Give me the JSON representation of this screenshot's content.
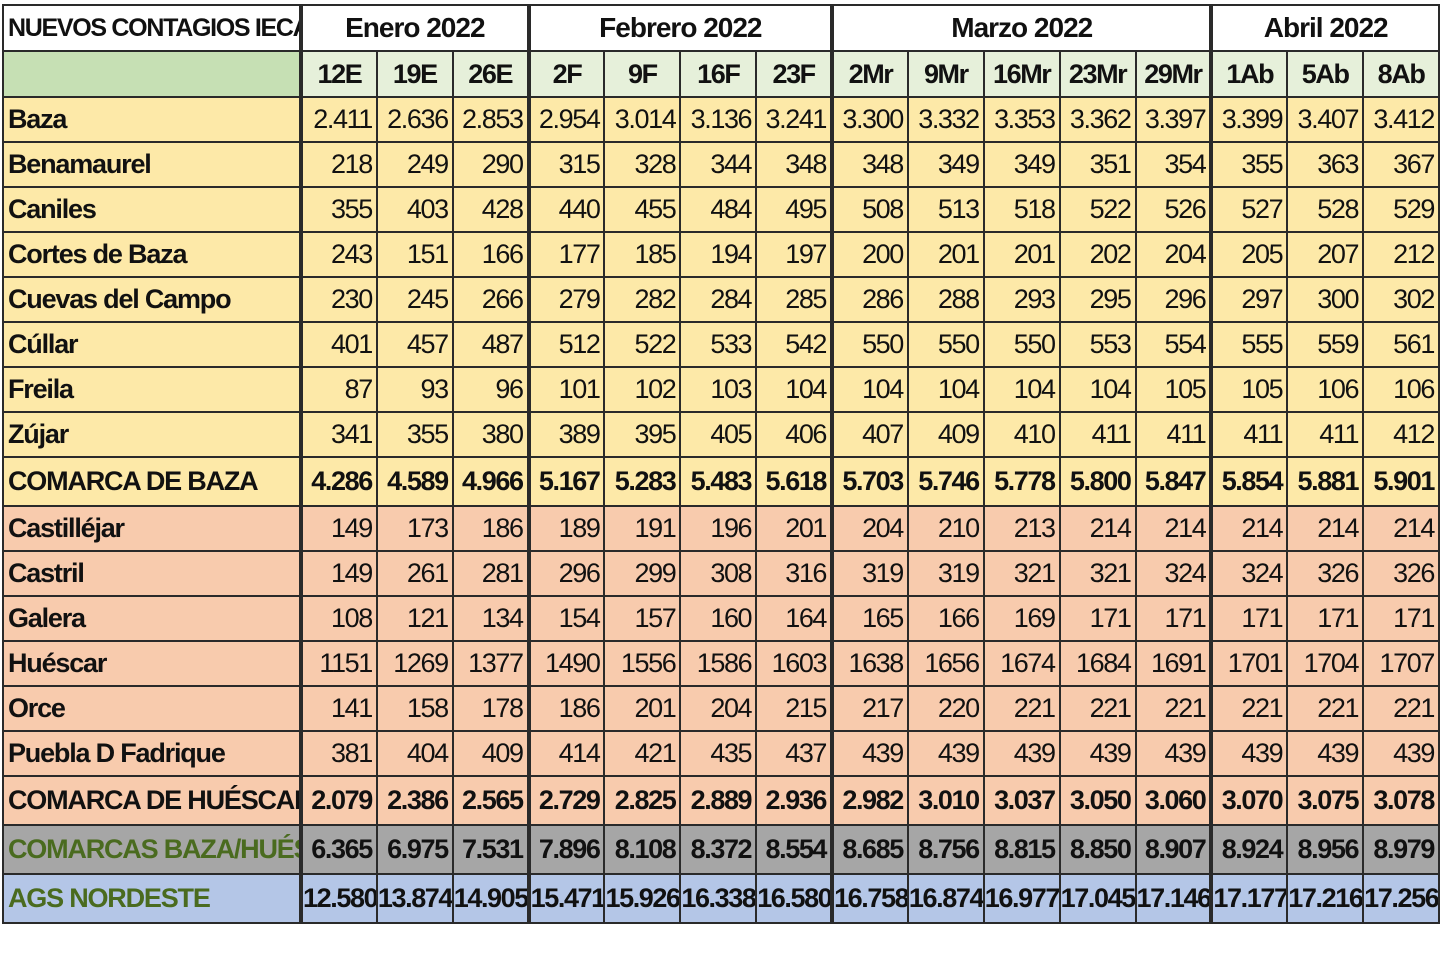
{
  "table": {
    "title": "NUEVOS CONTAGIOS IECA",
    "months": [
      {
        "label": "Enero 2022",
        "span": 3
      },
      {
        "label": "Febrero 2022",
        "span": 4
      },
      {
        "label": "Marzo 2022",
        "span": 5
      },
      {
        "label": "Abril 2022",
        "span": 3
      }
    ],
    "dates": [
      "12E",
      "19E",
      "26E",
      "2F",
      "9F",
      "16F",
      "23F",
      "2Mr",
      "9Mr",
      "16Mr",
      "23Mr",
      "29Mr",
      "1Ab",
      "5Ab",
      "8Ab"
    ],
    "rows": [
      {
        "name": "Baza",
        "values": [
          "2.411",
          "2.636",
          "2.853",
          "2.954",
          "3.014",
          "3.136",
          "3.241",
          "3.300",
          "3.332",
          "3.353",
          "3.362",
          "3.397",
          "3.399",
          "3.407",
          "3.412"
        ]
      },
      {
        "name": "Benamaurel",
        "values": [
          "218",
          "249",
          "290",
          "315",
          "328",
          "344",
          "348",
          "348",
          "349",
          "349",
          "351",
          "354",
          "355",
          "363",
          "367"
        ]
      },
      {
        "name": "Caniles",
        "values": [
          "355",
          "403",
          "428",
          "440",
          "455",
          "484",
          "495",
          "508",
          "513",
          "518",
          "522",
          "526",
          "527",
          "528",
          "529"
        ]
      },
      {
        "name": "Cortes de Baza",
        "values": [
          "243",
          "151",
          "166",
          "177",
          "185",
          "194",
          "197",
          "200",
          "201",
          "201",
          "202",
          "204",
          "205",
          "207",
          "212"
        ]
      },
      {
        "name": "Cuevas del Campo",
        "values": [
          "230",
          "245",
          "266",
          "279",
          "282",
          "284",
          "285",
          "286",
          "288",
          "293",
          "295",
          "296",
          "297",
          "300",
          "302"
        ]
      },
      {
        "name": "Cúllar",
        "values": [
          "401",
          "457",
          "487",
          "512",
          "522",
          "533",
          "542",
          "550",
          "550",
          "550",
          "553",
          "554",
          "555",
          "559",
          "561"
        ]
      },
      {
        "name": "Freila",
        "values": [
          "87",
          "93",
          "96",
          "101",
          "102",
          "103",
          "104",
          "104",
          "104",
          "104",
          "104",
          "105",
          "105",
          "106",
          "106"
        ]
      },
      {
        "name": "Zújar",
        "values": [
          "341",
          "355",
          "380",
          "389",
          "395",
          "405",
          "406",
          "407",
          "409",
          "410",
          "411",
          "411",
          "411",
          "411",
          "412"
        ]
      },
      {
        "name": "COMARCA DE BAZA",
        "values": [
          "4.286",
          "4.589",
          "4.966",
          "5.167",
          "5.283",
          "5.483",
          "5.618",
          "5.703",
          "5.746",
          "5.778",
          "5.800",
          "5.847",
          "5.854",
          "5.881",
          "5.901"
        ]
      },
      {
        "name": "Castilléjar",
        "values": [
          "149",
          "173",
          "186",
          "189",
          "191",
          "196",
          "201",
          "204",
          "210",
          "213",
          "214",
          "214",
          "214",
          "214",
          "214"
        ]
      },
      {
        "name": "Castril",
        "values": [
          "149",
          "261",
          "281",
          "296",
          "299",
          "308",
          "316",
          "319",
          "319",
          "321",
          "321",
          "324",
          "324",
          "326",
          "326"
        ]
      },
      {
        "name": "Galera",
        "values": [
          "108",
          "121",
          "134",
          "154",
          "157",
          "160",
          "164",
          "165",
          "166",
          "169",
          "171",
          "171",
          "171",
          "171",
          "171"
        ]
      },
      {
        "name": "Huéscar",
        "values": [
          "1151",
          "1269",
          "1377",
          "1490",
          "1556",
          "1586",
          "1603",
          "1638",
          "1656",
          "1674",
          "1684",
          "1691",
          "1701",
          "1704",
          "1707"
        ]
      },
      {
        "name": "Orce",
        "values": [
          "141",
          "158",
          "178",
          "186",
          "201",
          "204",
          "215",
          "217",
          "220",
          "221",
          "221",
          "221",
          "221",
          "221",
          "221"
        ]
      },
      {
        "name": "Puebla D Fadrique",
        "values": [
          "381",
          "404",
          "409",
          "414",
          "421",
          "435",
          "437",
          "439",
          "439",
          "439",
          "439",
          "439",
          "439",
          "439",
          "439"
        ]
      },
      {
        "name": "COMARCA DE HUÉSCAR",
        "values": [
          "2.079",
          "2.386",
          "2.565",
          "2.729",
          "2.825",
          "2.889",
          "2.936",
          "2.982",
          "3.010",
          "3.037",
          "3.050",
          "3.060",
          "3.070",
          "3.075",
          "3.078"
        ]
      },
      {
        "name": "COMARCAS BAZA/HUÉSCAR",
        "values": [
          "6.365",
          "6.975",
          "7.531",
          "7.896",
          "8.108",
          "8.372",
          "8.554",
          "8.685",
          "8.756",
          "8.815",
          "8.850",
          "8.907",
          "8.924",
          "8.956",
          "8.979"
        ]
      },
      {
        "name": "AGS NORDESTE",
        "values": [
          "12.580",
          "13.874",
          "14.905",
          "15.471",
          "15.926",
          "16.338",
          "16.580",
          "16.758",
          "16.874",
          "16.977",
          "17.045",
          "17.146",
          "17.177",
          "17.216",
          "17.256"
        ]
      }
    ],
    "colors": {
      "baza_rows": "#fde9a8",
      "huescar_rows": "#f8cbad",
      "combined_row": "#a6a6a6",
      "ags_row": "#b4c6e7",
      "date_header": "#e6f0da",
      "highlight_text": "#4a6b1f"
    }
  }
}
